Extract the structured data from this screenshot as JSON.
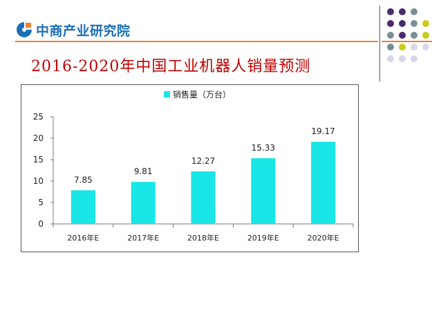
{
  "header": {
    "logo_text": "中商产业研究院",
    "logo_color": "#1b6fb8",
    "accent_line_color": "#e8802a"
  },
  "decor_dot_colors": [
    "#4b2a6e",
    "#7a8f95",
    "#c9cc1c",
    "#d8d6ea"
  ],
  "chart_data": {
    "type": "bar",
    "title": "2016-2020年中国工业机器人销量预测",
    "legend": {
      "label": "销售量（万台）",
      "position": "top"
    },
    "categories": [
      "2016年E",
      "2017年E",
      "2018年E",
      "2019年E",
      "2020年E"
    ],
    "series": [
      {
        "name": "销售量（万台）",
        "values": [
          7.85,
          9.81,
          12.27,
          15.33,
          19.17
        ],
        "color": "#19e6e6"
      }
    ],
    "data_labels": [
      "7.85",
      "9.81",
      "12.27",
      "15.33",
      "19.17"
    ],
    "yticks": [
      "0",
      "5",
      "10",
      "15",
      "20",
      "25"
    ],
    "ylim": [
      0,
      25
    ],
    "grid": false
  }
}
